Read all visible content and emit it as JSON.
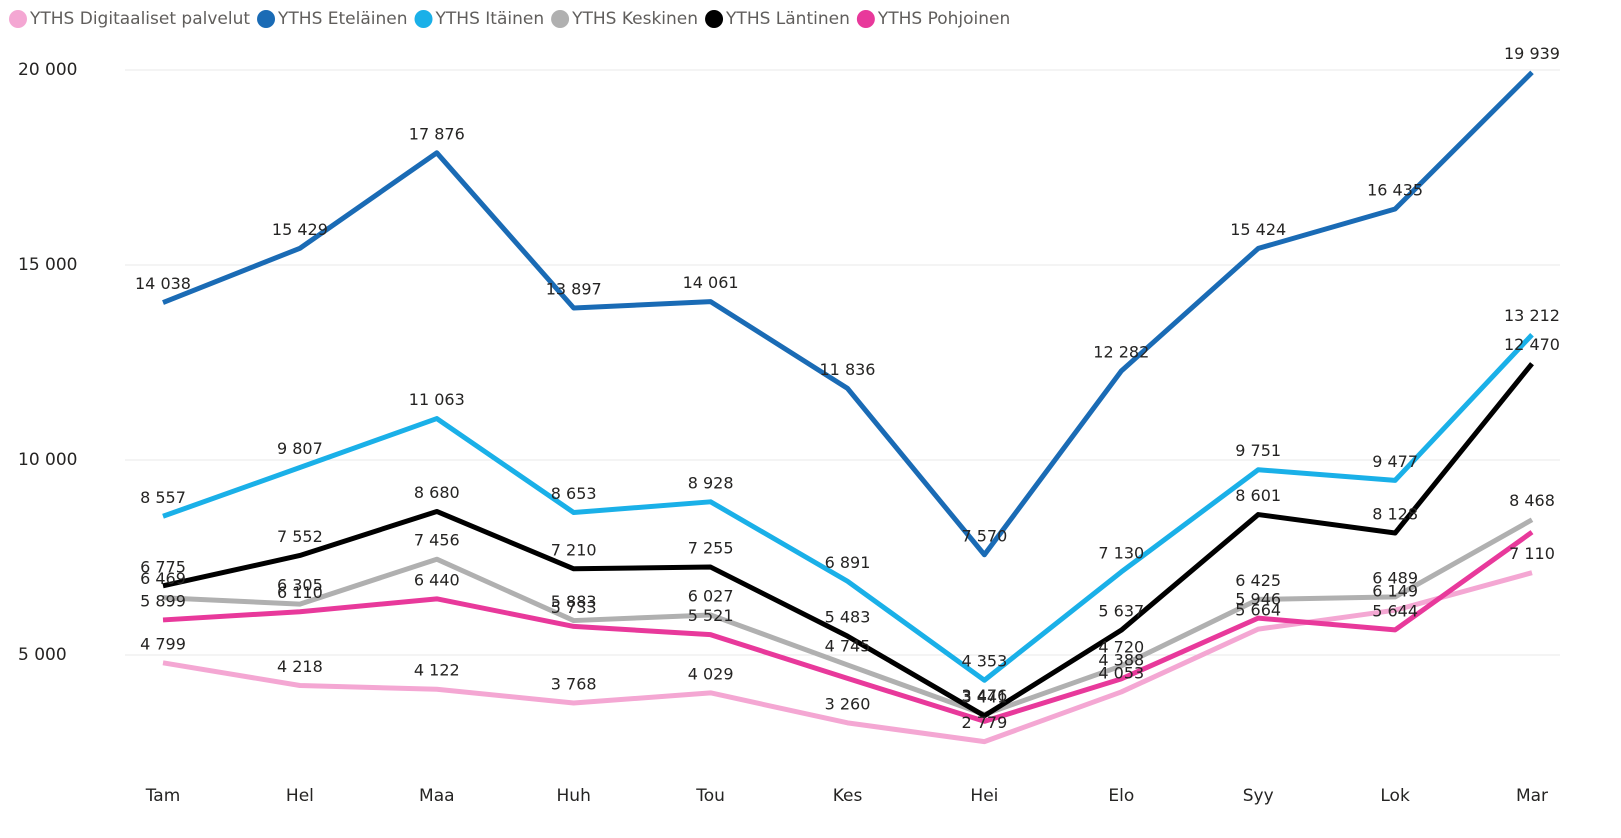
{
  "chart_data": {
    "type": "line",
    "categories": [
      "Tam",
      "Hel",
      "Maa",
      "Huh",
      "Tou",
      "Kes",
      "Hei",
      "Elo",
      "Syy",
      "Lok",
      "Mar"
    ],
    "ylim": [
      2000,
      20000
    ],
    "yticks": [
      {
        "value": 5000,
        "label": "5 000"
      },
      {
        "value": 10000,
        "label": "10 000"
      },
      {
        "value": 15000,
        "label": "15 000"
      },
      {
        "value": 20000,
        "label": "20 000"
      }
    ],
    "grid": true,
    "legend": "top-left",
    "series": [
      {
        "name": "YTHS Digitaaliset palvelut",
        "color": "#f4a7d3",
        "values": [
          4799,
          4218,
          4122,
          3768,
          4029,
          3260,
          2779,
          4053,
          5664,
          6149,
          7110
        ],
        "value_labels": [
          "4 799",
          "4 218",
          "4 122",
          "3 768",
          "4 029",
          "3 260",
          "2 779",
          "4 053",
          "5 664",
          "6 149",
          "7 110"
        ]
      },
      {
        "name": "YTHS Eteläinen",
        "color": "#1a6bb5",
        "values": [
          14038,
          15429,
          17876,
          13897,
          14061,
          11836,
          7570,
          12282,
          15424,
          16435,
          19939
        ],
        "value_labels": [
          "14 038",
          "15 429",
          "17 876",
          "13 897",
          "14 061",
          "11 836",
          "7 570",
          "12 282",
          "15 424",
          "16 435",
          "19 939"
        ]
      },
      {
        "name": "YTHS Itäinen",
        "color": "#1ab0e8",
        "values": [
          8557,
          9807,
          11063,
          8653,
          8928,
          6891,
          4353,
          7130,
          9751,
          9477,
          13212
        ],
        "value_labels": [
          "8 557",
          "9 807",
          "11 063",
          "8 653",
          "8 928",
          "6 891",
          "4 353",
          "7 130",
          "9 751",
          "9 477",
          "13 212"
        ]
      },
      {
        "name": "YTHS Keskinen",
        "color": "#b0b0b0",
        "values": [
          6469,
          6305,
          7456,
          5883,
          6027,
          4745,
          3476,
          4720,
          6425,
          6489,
          8468
        ],
        "value_labels": [
          "6 469",
          "6 305",
          "7 456",
          "5 883",
          "6 027",
          "4 745",
          "3 476",
          "4 720",
          "6 425",
          "6 489",
          "8 468"
        ]
      },
      {
        "name": "YTHS Läntinen",
        "color": "#000000",
        "values": [
          6775,
          7552,
          8680,
          7210,
          7255,
          5483,
          3441,
          5637,
          8601,
          8128,
          12470
        ],
        "value_labels": [
          "6 775",
          "7 552",
          "8 680",
          "7 210",
          "7 255",
          "5 483",
          "3 441",
          "5 637",
          "8 601",
          "8 128",
          "12 470"
        ]
      },
      {
        "name": "YTHS Pohjoinen",
        "color": "#e8399b",
        "values": [
          5899,
          6110,
          6440,
          5733,
          5521,
          4400,
          3300,
          4388,
          5946,
          5644,
          8150
        ],
        "value_labels": [
          "5 899",
          "6 110",
          "6 440",
          "5 733",
          "5 521",
          null,
          null,
          "4 388",
          "5 946",
          "5 644",
          null
        ]
      }
    ]
  }
}
